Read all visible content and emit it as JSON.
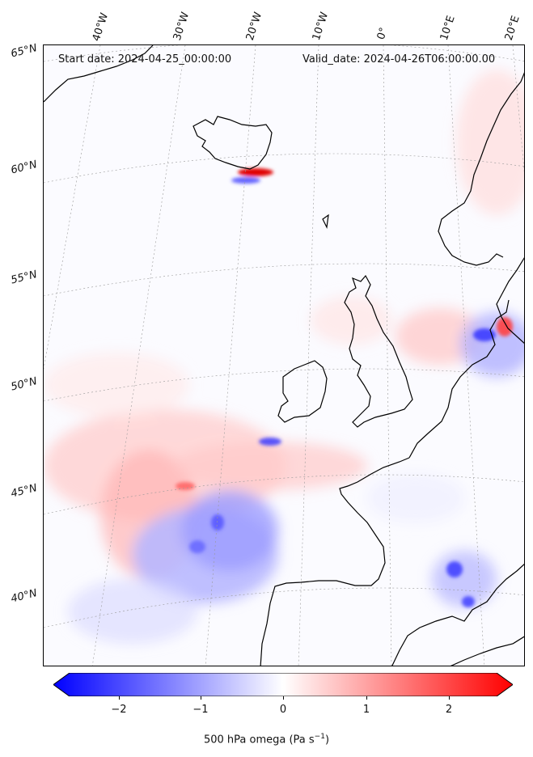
{
  "map": {
    "start_date": "Start date: 2024-04-25_00:00:00",
    "valid_date": "Valid_date: 2024-04-26T06:00:00.00",
    "longitude_labels": [
      "40°W",
      "30°W",
      "20°W",
      "10°W",
      "0°",
      "10°E",
      "20°E"
    ],
    "latitude_labels": [
      "65°N",
      "60°N",
      "55°N",
      "50°N",
      "45°N",
      "40°N"
    ],
    "colormap": "bwr",
    "colors": {
      "negative": "#0000ff",
      "zero": "#ffffff",
      "positive": "#ff0000",
      "coastline": "#000000"
    }
  },
  "colorbar": {
    "ticks": [
      "−2",
      "−1",
      "0",
      "1",
      "2"
    ],
    "range": [
      -2.6,
      2.6
    ],
    "label": "500 hPa omega (Pa s",
    "label_exp": "−1",
    "label_close": ")"
  }
}
